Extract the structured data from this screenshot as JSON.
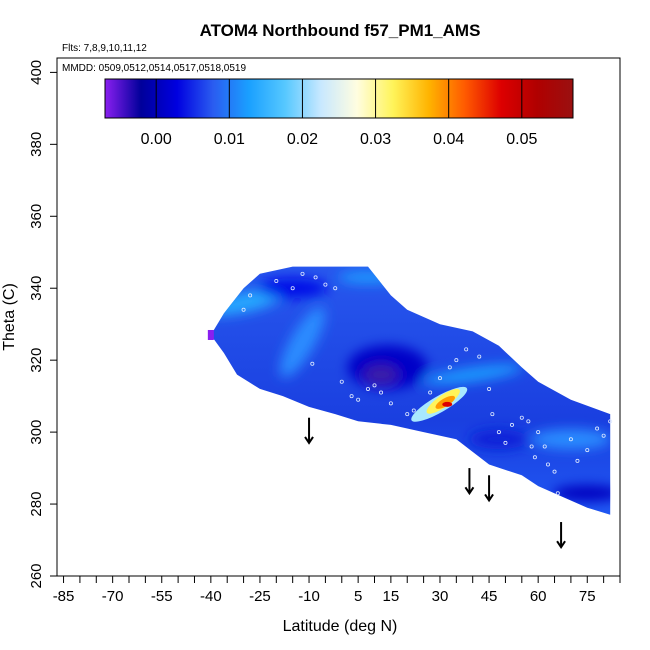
{
  "chart_data": {
    "type": "heatmap",
    "title": "ATOM4 Northbound f57_PM1_AMS",
    "flights_label": "Flts: 7,8,9,10,11,12",
    "dates_label": "MMDD: 0509,0512,0514,0517,0518,0519",
    "xlabel": "Latitude (deg N)",
    "ylabel": "Theta (C)",
    "xlim": [
      -87,
      85
    ],
    "ylim": [
      260,
      404
    ],
    "x_ticks": [
      -85,
      -70,
      -55,
      -40,
      -25,
      -10,
      5,
      15,
      30,
      45,
      60,
      75
    ],
    "x_tick_labels": [
      "-85",
      "-70",
      "-55",
      "-40",
      "-25",
      "-10",
      "5",
      "15",
      "30",
      "45",
      "60",
      "75"
    ],
    "x_minor_ticks": [
      -80,
      -75,
      -65,
      -60,
      -50,
      -45,
      -35,
      -30,
      -20,
      -15,
      -5,
      0,
      10,
      20,
      25,
      35,
      40,
      50,
      55,
      65,
      70,
      80,
      85
    ],
    "y_ticks": [
      260,
      280,
      300,
      320,
      340,
      360,
      380,
      400
    ],
    "y_tick_labels": [
      "260",
      "280",
      "300",
      "320",
      "340",
      "360",
      "380",
      "400"
    ],
    "colorbar": {
      "range": [
        -0.007,
        0.057
      ],
      "ticks": [
        0.0,
        0.01,
        0.02,
        0.03,
        0.04,
        0.05
      ],
      "tick_labels": [
        "0.00",
        "0.01",
        "0.02",
        "0.03",
        "0.04",
        "0.05"
      ],
      "colors": [
        "#8a1ff0",
        "#00009a",
        "#0000e0",
        "#2a5cf0",
        "#1aa0ff",
        "#56c8ff",
        "#c8e8ff",
        "#fffde0",
        "#fff45a",
        "#ffb300",
        "#ff5a00",
        "#dd0000",
        "#b00000",
        "#9a1010"
      ]
    },
    "field": {
      "lower_boundary": [
        [
          -40,
          327
        ],
        [
          -36,
          322
        ],
        [
          -32,
          316
        ],
        [
          -25,
          312
        ],
        [
          -18,
          310
        ],
        [
          -10,
          307
        ],
        [
          -2,
          305
        ],
        [
          5,
          303
        ],
        [
          15,
          302
        ],
        [
          25,
          300
        ],
        [
          35,
          298
        ],
        [
          45,
          291
        ],
        [
          55,
          288
        ],
        [
          60,
          285
        ],
        [
          70,
          281
        ],
        [
          75,
          279
        ],
        [
          82,
          277
        ]
      ],
      "upper_boundary": [
        [
          -40,
          327
        ],
        [
          -36,
          333
        ],
        [
          -30,
          340
        ],
        [
          -25,
          344
        ],
        [
          -15,
          346
        ],
        [
          -5,
          346
        ],
        [
          8,
          346
        ],
        [
          15,
          338
        ],
        [
          20,
          334
        ],
        [
          30,
          330
        ],
        [
          40,
          328
        ],
        [
          48,
          324
        ],
        [
          55,
          318
        ],
        [
          60,
          314
        ],
        [
          70,
          309
        ],
        [
          82,
          305
        ]
      ],
      "max_region": {
        "lat": 31,
        "theta": 308,
        "value": 0.052
      },
      "background_value": 0.007
    },
    "observation_points": [
      [
        -30,
        334
      ],
      [
        -28,
        338
      ],
      [
        -20,
        342
      ],
      [
        -15,
        340
      ],
      [
        -12,
        344
      ],
      [
        -8,
        343
      ],
      [
        -5,
        341
      ],
      [
        -2,
        340
      ],
      [
        -9,
        319
      ],
      [
        0,
        314
      ],
      [
        3,
        310
      ],
      [
        5,
        309
      ],
      [
        8,
        312
      ],
      [
        10,
        313
      ],
      [
        12,
        311
      ],
      [
        15,
        308
      ],
      [
        20,
        305
      ],
      [
        22,
        306
      ],
      [
        27,
        311
      ],
      [
        30,
        315
      ],
      [
        33,
        318
      ],
      [
        35,
        320
      ],
      [
        38,
        323
      ],
      [
        42,
        321
      ],
      [
        45,
        312
      ],
      [
        46,
        305
      ],
      [
        48,
        300
      ],
      [
        50,
        297
      ],
      [
        52,
        302
      ],
      [
        55,
        304
      ],
      [
        57,
        303
      ],
      [
        58,
        296
      ],
      [
        59,
        293
      ],
      [
        60,
        300
      ],
      [
        62,
        296
      ],
      [
        63,
        291
      ],
      [
        65,
        289
      ],
      [
        66,
        283
      ],
      [
        70,
        298
      ],
      [
        72,
        292
      ],
      [
        75,
        295
      ],
      [
        78,
        301
      ],
      [
        80,
        299
      ],
      [
        82,
        303
      ]
    ],
    "arrows": [
      {
        "lat": -10,
        "theta": 304,
        "length": 7
      },
      {
        "lat": 39,
        "theta": 290,
        "length": 7
      },
      {
        "lat": 45,
        "theta": 288,
        "length": 7
      },
      {
        "lat": 67,
        "theta": 275,
        "length": 7
      }
    ]
  }
}
